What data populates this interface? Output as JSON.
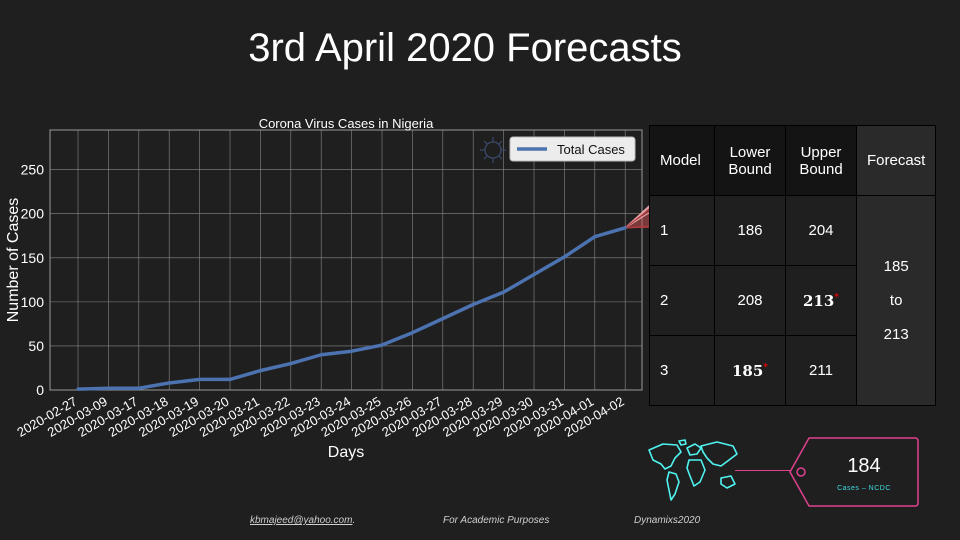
{
  "slide": {
    "title": "3rd April 2020 Forecasts"
  },
  "chart_data": {
    "type": "line",
    "title": "Corona Virus Cases in Nigeria",
    "xlabel": "Days",
    "ylabel": "Number of Cases",
    "categories": [
      "2020-02-27",
      "2020-03-09",
      "2020-03-17",
      "2020-03-18",
      "2020-03-19",
      "2020-03-20",
      "2020-03-21",
      "2020-03-22",
      "2020-03-23",
      "2020-03-24",
      "2020-03-25",
      "2020-03-26",
      "2020-03-27",
      "2020-03-28",
      "2020-03-29",
      "2020-03-30",
      "2020-03-31",
      "2020-04-01",
      "2020-04-02"
    ],
    "series": [
      {
        "name": "Total Cases",
        "values": [
          1,
          2,
          2,
          8,
          12,
          12,
          22,
          30,
          40,
          44,
          51,
          65,
          81,
          97,
          111,
          131,
          151,
          174,
          184
        ]
      }
    ],
    "forecast_band": {
      "start": 184,
      "lower": [
        185,
        186,
        208
      ],
      "upper": [
        204,
        211,
        213
      ]
    },
    "yticks": [
      0,
      50,
      100,
      150,
      200,
      250
    ],
    "ylim": [
      0,
      295
    ],
    "grid": true,
    "legend_position": "top-right",
    "colors": {
      "line": "#4c72b0",
      "band": "#c44e52",
      "background": "#1f1f1f",
      "grid": "#888888"
    }
  },
  "table": {
    "headers": {
      "model": "Model",
      "lower": "Lower Bound",
      "upper": "Upper Bound",
      "forecast": "Forecast"
    },
    "rows": [
      {
        "model": "1",
        "lower": "186",
        "upper": "204"
      },
      {
        "model": "2",
        "lower": "208",
        "upper": "213"
      },
      {
        "model": "3",
        "lower": "185",
        "upper": "211"
      }
    ],
    "forecast": {
      "from": "185",
      "to_word": "to",
      "to": "213"
    },
    "marker": "*"
  },
  "callout": {
    "value": "184",
    "label": "Cases – NCDC"
  },
  "footer": {
    "email": "kbmajeed@yahoo.com",
    "email_suffix": ".",
    "note": "For Academic Purposes",
    "brand": "Dynamixs2020"
  }
}
